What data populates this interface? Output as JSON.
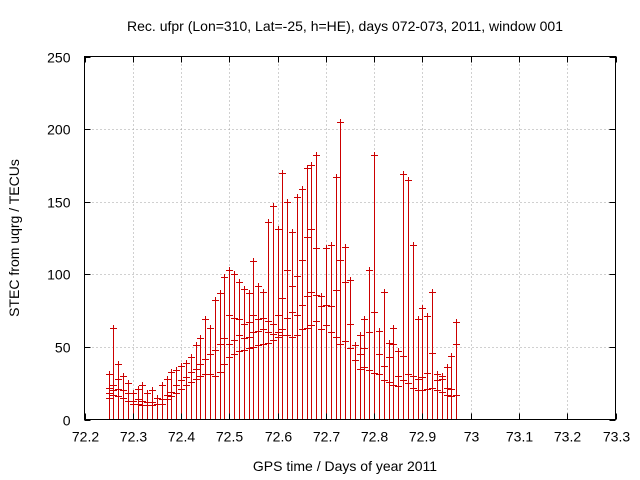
{
  "chart_data": {
    "type": "scatter",
    "title": "Rec. ufpr (Lon=310, Lat=-25, h=HE), days 072-073, 2011, window 001",
    "xlabel": "GPS time / Days of year 2011",
    "ylabel": "STEC from uqrg / TECUs",
    "xlim": [
      72.2,
      73.3
    ],
    "ylim": [
      0,
      250
    ],
    "xticks": [
      72.2,
      72.3,
      72.4,
      72.5,
      72.6,
      72.7,
      72.8,
      72.9,
      73,
      73.1,
      73.2,
      73.3
    ],
    "xtick_labels": [
      "72.2",
      "72.3",
      "72.4",
      "72.5",
      "72.6",
      "72.7",
      "72.8",
      "72.9",
      "73",
      "73.1",
      "73.2",
      "73.3"
    ],
    "yticks": [
      0,
      50,
      100,
      150,
      200,
      250
    ],
    "ytick_labels": [
      "0",
      "50",
      "100",
      "150",
      "200",
      "250"
    ],
    "grid": true,
    "color": "#cc0000",
    "marker": "plus with vertical line to zero",
    "series": [
      {
        "name": "STEC",
        "points": [
          [
            72.25,
            31
          ],
          [
            72.25,
            22
          ],
          [
            72.25,
            18
          ],
          [
            72.25,
            15
          ],
          [
            72.26,
            63
          ],
          [
            72.26,
            24
          ],
          [
            72.26,
            20
          ],
          [
            72.26,
            17
          ],
          [
            72.27,
            38
          ],
          [
            72.27,
            28
          ],
          [
            72.27,
            21
          ],
          [
            72.27,
            16
          ],
          [
            72.28,
            30
          ],
          [
            72.28,
            20
          ],
          [
            72.28,
            15
          ],
          [
            72.29,
            25
          ],
          [
            72.29,
            18
          ],
          [
            72.29,
            13
          ],
          [
            72.3,
            18
          ],
          [
            72.3,
            13
          ],
          [
            72.3,
            11
          ],
          [
            72.31,
            21
          ],
          [
            72.31,
            14
          ],
          [
            72.31,
            11
          ],
          [
            72.32,
            24
          ],
          [
            72.32,
            13
          ],
          [
            72.32,
            10
          ],
          [
            72.33,
            18
          ],
          [
            72.33,
            12
          ],
          [
            72.33,
            10
          ],
          [
            72.34,
            20
          ],
          [
            72.34,
            12
          ],
          [
            72.34,
            10
          ],
          [
            72.35,
            15
          ],
          [
            72.35,
            11
          ],
          [
            72.36,
            24
          ],
          [
            72.36,
            14
          ],
          [
            72.36,
            11
          ],
          [
            72.37,
            28
          ],
          [
            72.37,
            17
          ],
          [
            72.37,
            14
          ],
          [
            72.38,
            33
          ],
          [
            72.38,
            19
          ],
          [
            72.38,
            16
          ],
          [
            72.39,
            34
          ],
          [
            72.39,
            24
          ],
          [
            72.39,
            18
          ],
          [
            72.4,
            37
          ],
          [
            72.4,
            27
          ],
          [
            72.4,
            21
          ],
          [
            72.41,
            39
          ],
          [
            72.41,
            29
          ],
          [
            72.41,
            24
          ],
          [
            72.42,
            43
          ],
          [
            72.42,
            33
          ],
          [
            72.42,
            26
          ],
          [
            72.43,
            51
          ],
          [
            72.43,
            35
          ],
          [
            72.43,
            28
          ],
          [
            72.44,
            56
          ],
          [
            72.44,
            38
          ],
          [
            72.44,
            30
          ],
          [
            72.45,
            69
          ],
          [
            72.45,
            42
          ],
          [
            72.45,
            31
          ],
          [
            72.46,
            63
          ],
          [
            72.46,
            45
          ],
          [
            72.46,
            31
          ],
          [
            72.47,
            82
          ],
          [
            72.47,
            48
          ],
          [
            72.47,
            30
          ],
          [
            72.48,
            87
          ],
          [
            72.48,
            52
          ],
          [
            72.48,
            33
          ],
          [
            72.49,
            98
          ],
          [
            72.49,
            56
          ],
          [
            72.49,
            38
          ],
          [
            72.5,
            103
          ],
          [
            72.5,
            72
          ],
          [
            72.5,
            52
          ],
          [
            72.5,
            43
          ],
          [
            72.51,
            100
          ],
          [
            72.51,
            70
          ],
          [
            72.51,
            55
          ],
          [
            72.51,
            45
          ],
          [
            72.52,
            95
          ],
          [
            72.52,
            69
          ],
          [
            72.52,
            58
          ],
          [
            72.52,
            47
          ],
          [
            72.53,
            90
          ],
          [
            72.53,
            66
          ],
          [
            72.53,
            56
          ],
          [
            72.53,
            48
          ],
          [
            72.54,
            87
          ],
          [
            72.54,
            67
          ],
          [
            72.54,
            57
          ],
          [
            72.54,
            49
          ],
          [
            72.55,
            109
          ],
          [
            72.55,
            72
          ],
          [
            72.55,
            60
          ],
          [
            72.55,
            50
          ],
          [
            72.56,
            92
          ],
          [
            72.56,
            69
          ],
          [
            72.56,
            61
          ],
          [
            72.56,
            51
          ],
          [
            72.57,
            88
          ],
          [
            72.57,
            70
          ],
          [
            72.57,
            62
          ],
          [
            72.57,
            52
          ],
          [
            72.58,
            136
          ],
          [
            72.58,
            68
          ],
          [
            72.58,
            60
          ],
          [
            72.58,
            53
          ],
          [
            72.59,
            147
          ],
          [
            72.59,
            66
          ],
          [
            72.59,
            59
          ],
          [
            72.59,
            55
          ],
          [
            72.6,
            131
          ],
          [
            72.6,
            72
          ],
          [
            72.6,
            60
          ],
          [
            72.6,
            57
          ],
          [
            72.61,
            170
          ],
          [
            72.61,
            84
          ],
          [
            72.61,
            62
          ],
          [
            72.61,
            58
          ],
          [
            72.62,
            150
          ],
          [
            72.62,
            103
          ],
          [
            72.62,
            70
          ],
          [
            72.62,
            58
          ],
          [
            72.63,
            129
          ],
          [
            72.63,
            92
          ],
          [
            72.63,
            74
          ],
          [
            72.63,
            57
          ],
          [
            72.64,
            153
          ],
          [
            72.64,
            99
          ],
          [
            72.64,
            72
          ],
          [
            72.64,
            58
          ],
          [
            72.65,
            159
          ],
          [
            72.65,
            110
          ],
          [
            72.65,
            79
          ],
          [
            72.65,
            62
          ],
          [
            72.66,
            173
          ],
          [
            72.66,
            126
          ],
          [
            72.66,
            85
          ],
          [
            72.66,
            63
          ],
          [
            72.67,
            175
          ],
          [
            72.67,
            131
          ],
          [
            72.67,
            88
          ],
          [
            72.67,
            65
          ],
          [
            72.68,
            182
          ],
          [
            72.68,
            118
          ],
          [
            72.68,
            86
          ],
          [
            72.68,
            68
          ],
          [
            72.69,
            85
          ],
          [
            72.69,
            78
          ],
          [
            72.69,
            62
          ],
          [
            72.7,
            118
          ],
          [
            72.7,
            79
          ],
          [
            72.7,
            65
          ],
          [
            72.71,
            120
          ],
          [
            72.71,
            78
          ],
          [
            72.71,
            60
          ],
          [
            72.72,
            167
          ],
          [
            72.72,
            89
          ],
          [
            72.72,
            57
          ],
          [
            72.73,
            205
          ],
          [
            72.73,
            110
          ],
          [
            72.73,
            52
          ],
          [
            72.74,
            119
          ],
          [
            72.74,
            95
          ],
          [
            72.74,
            54
          ],
          [
            72.75,
            96
          ],
          [
            72.75,
            66
          ],
          [
            72.75,
            49
          ],
          [
            72.76,
            51
          ],
          [
            72.76,
            41
          ],
          [
            72.77,
            58
          ],
          [
            72.77,
            45
          ],
          [
            72.77,
            35
          ],
          [
            72.78,
            69
          ],
          [
            72.78,
            49
          ],
          [
            72.78,
            36
          ],
          [
            72.79,
            103
          ],
          [
            72.79,
            60
          ],
          [
            72.79,
            34
          ],
          [
            72.8,
            182
          ],
          [
            72.8,
            74
          ],
          [
            72.8,
            32
          ],
          [
            72.81,
            61
          ],
          [
            72.81,
            45
          ],
          [
            72.81,
            31
          ],
          [
            72.82,
            88
          ],
          [
            72.82,
            37
          ],
          [
            72.82,
            27
          ],
          [
            72.83,
            53
          ],
          [
            72.83,
            43
          ],
          [
            72.83,
            26
          ],
          [
            72.84,
            63
          ],
          [
            72.84,
            52
          ],
          [
            72.84,
            24
          ],
          [
            72.85,
            47
          ],
          [
            72.85,
            30
          ],
          [
            72.85,
            23
          ],
          [
            72.86,
            169
          ],
          [
            72.86,
            44
          ],
          [
            72.86,
            27
          ],
          [
            72.87,
            165
          ],
          [
            72.87,
            31
          ],
          [
            72.87,
            25
          ],
          [
            72.88,
            120
          ],
          [
            72.88,
            30
          ],
          [
            72.88,
            22
          ],
          [
            72.89,
            69
          ],
          [
            72.89,
            28
          ],
          [
            72.89,
            20
          ],
          [
            72.9,
            77
          ],
          [
            72.9,
            29
          ],
          [
            72.9,
            20
          ],
          [
            72.91,
            71
          ],
          [
            72.91,
            32
          ],
          [
            72.91,
            21
          ],
          [
            72.92,
            88
          ],
          [
            72.92,
            46
          ],
          [
            72.92,
            22
          ],
          [
            72.93,
            31
          ],
          [
            72.93,
            27
          ],
          [
            72.93,
            20
          ],
          [
            72.94,
            30
          ],
          [
            72.94,
            28
          ],
          [
            72.94,
            19
          ],
          [
            72.95,
            36
          ],
          [
            72.95,
            22
          ],
          [
            72.95,
            17
          ],
          [
            72.96,
            44
          ],
          [
            72.96,
            21
          ],
          [
            72.96,
            16
          ],
          [
            72.97,
            67
          ],
          [
            72.97,
            52
          ],
          [
            72.97,
            17
          ]
        ]
      }
    ]
  }
}
